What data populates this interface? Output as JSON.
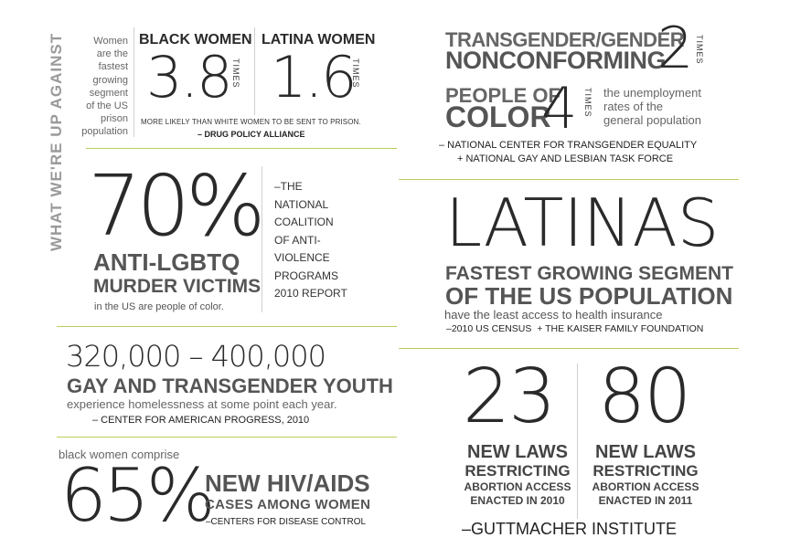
{
  "side_title": "WHAT WE'RE UP AGAINST",
  "prison": {
    "intro": [
      "Women",
      "are the",
      "fastest",
      "growing",
      "segment",
      "of the US",
      "prison",
      "population"
    ],
    "black_label": "BLACK WOMEN",
    "black_value": "3.8",
    "latina_label": "LATINA WOMEN",
    "latina_value": "1.6",
    "times": "TIMES",
    "caption": "MORE LIKELY THAN WHITE WOMEN TO BE SENT TO PRISON.",
    "source": "– DRUG POLICY ALLIANCE"
  },
  "trans": {
    "line1": "TRANSGENDER/GENDER",
    "line2": "NONCONFORMING",
    "value1": "2",
    "poc1": "PEOPLE OF",
    "poc2": "COLOR",
    "value2": "4",
    "times": "TIMES",
    "desc": [
      "the unemployment",
      "rates of the",
      "general population"
    ],
    "source1": "– NATIONAL CENTER FOR TRANSGENDER EQUALITY",
    "source2": "+ NATIONAL GAY AND LESBIAN TASK FORCE"
  },
  "murder": {
    "value": "70%",
    "line1": "ANTI-LGBTQ",
    "line2": "MURDER VICTIMS",
    "caption": "in the US are people of color.",
    "source": [
      "–THE",
      "NATIONAL",
      "COALITION",
      "OF ANTI-",
      "VIOLENCE",
      "PROGRAMS",
      "2010 REPORT"
    ]
  },
  "latinas": {
    "title": "LATINAS",
    "line1": "FASTEST GROWING SEGMENT",
    "line2": "OF THE US POPULATION",
    "caption": "have the least access to health insurance",
    "source": "–2010 US CENSUS  + THE KAISER FAMILY FOUNDATION"
  },
  "youth": {
    "value": "320,000 – 400,000",
    "title": "GAY AND TRANSGENDER YOUTH",
    "caption": "experience homelessness at some point each year.",
    "source": "– CENTER FOR AMERICAN PROGRESS, 2010"
  },
  "laws": {
    "value1": "23",
    "value2": "80",
    "l1": [
      "NEW LAWS",
      "RESTRICTING",
      "ABORTION ACCESS",
      "ENACTED IN 2010"
    ],
    "l2": [
      "NEW LAWS",
      "RESTRICTING",
      "ABORTION ACCESS",
      "ENACTED IN 2011"
    ],
    "source": "–GUTTMACHER INSTITUTE"
  },
  "hiv": {
    "intro": "black women comprise",
    "value": "65%",
    "line1": "NEW HIV/AIDS",
    "line2": "CASES AMONG WOMEN",
    "source": "–CENTERS FOR DISEASE CONTROL"
  },
  "colors": {
    "accent_line": "#b5cf5c",
    "text_dark": "#2a2a2a",
    "text_grey": "#666666"
  }
}
